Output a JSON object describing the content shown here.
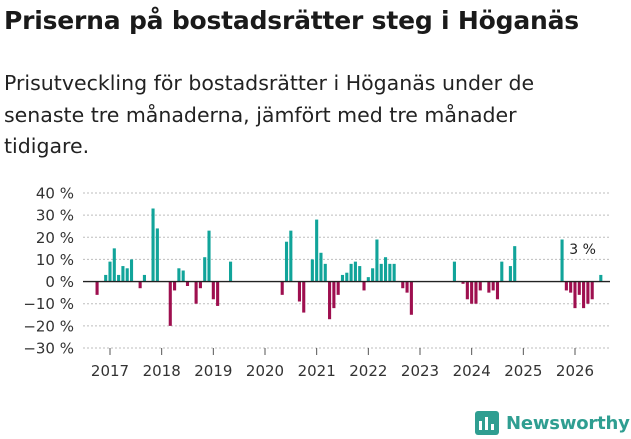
{
  "page": {
    "title": "Priserna på bostadsrätter steg i Höganäs",
    "subtitle": "Prisutveckling för bostadsrätter i Höganäs under de senaste tre månaderna, jämfört med tre månader tidigare.",
    "brand": "Newsworthy"
  },
  "colors": {
    "positive": "#11a49a",
    "negative": "#9e0f4f",
    "axis": "#222222",
    "grid": "#bdbdbd",
    "text": "#333333"
  },
  "chart_data": {
    "type": "bar",
    "title": "Priserna på bostadsrätter steg i Höganäs",
    "xlabel": "",
    "ylabel": "",
    "ylim": [
      -30,
      40
    ],
    "yticks": [
      40,
      30,
      20,
      10,
      0,
      -10,
      -20,
      -30
    ],
    "ytick_labels": [
      "40 %",
      "30 %",
      "20 %",
      "10 %",
      "0 %",
      "−10 %",
      "−20 %",
      "−30 %"
    ],
    "xticks": [
      2017,
      2018,
      2019,
      2020,
      2021,
      2022,
      2023,
      2024,
      2025,
      2026
    ],
    "xtick_labels": [
      "2017",
      "2018",
      "2019",
      "2020",
      "2021",
      "2022",
      "2023",
      "2024",
      "2025",
      "2026"
    ],
    "x_start": 2016.5,
    "x_step": 0.08333,
    "values": [
      0,
      0,
      0,
      -6,
      0,
      3,
      9,
      15,
      3,
      7,
      6,
      10,
      0,
      -3,
      3,
      0,
      33,
      24,
      0,
      0,
      -20,
      -4,
      6,
      5,
      -2,
      0,
      -10,
      -3,
      11,
      23,
      -8,
      -11,
      0,
      0,
      9,
      0,
      0,
      0,
      0,
      0,
      0,
      0,
      0,
      0,
      0,
      0,
      -6,
      18,
      23,
      0,
      -9,
      -14,
      0,
      10,
      28,
      13,
      8,
      -17,
      -12,
      -6,
      3,
      4,
      8,
      9,
      7,
      -4,
      2,
      6,
      19,
      8,
      11,
      8,
      8,
      0,
      -3,
      -5,
      -15,
      0,
      0,
      0,
      0,
      0,
      0,
      0,
      0,
      0,
      9,
      0,
      -1,
      -8,
      -10,
      -10,
      -4,
      0,
      -5,
      -4,
      -8,
      9,
      0,
      7,
      16,
      0,
      0,
      0,
      0,
      0,
      0,
      0,
      0,
      0,
      0,
      19,
      -4,
      -5,
      -12,
      -6,
      -12,
      -10,
      -8,
      0,
      3
    ],
    "annotations": [
      {
        "x_index": 116,
        "value": 3,
        "text": "3 %"
      }
    ]
  }
}
